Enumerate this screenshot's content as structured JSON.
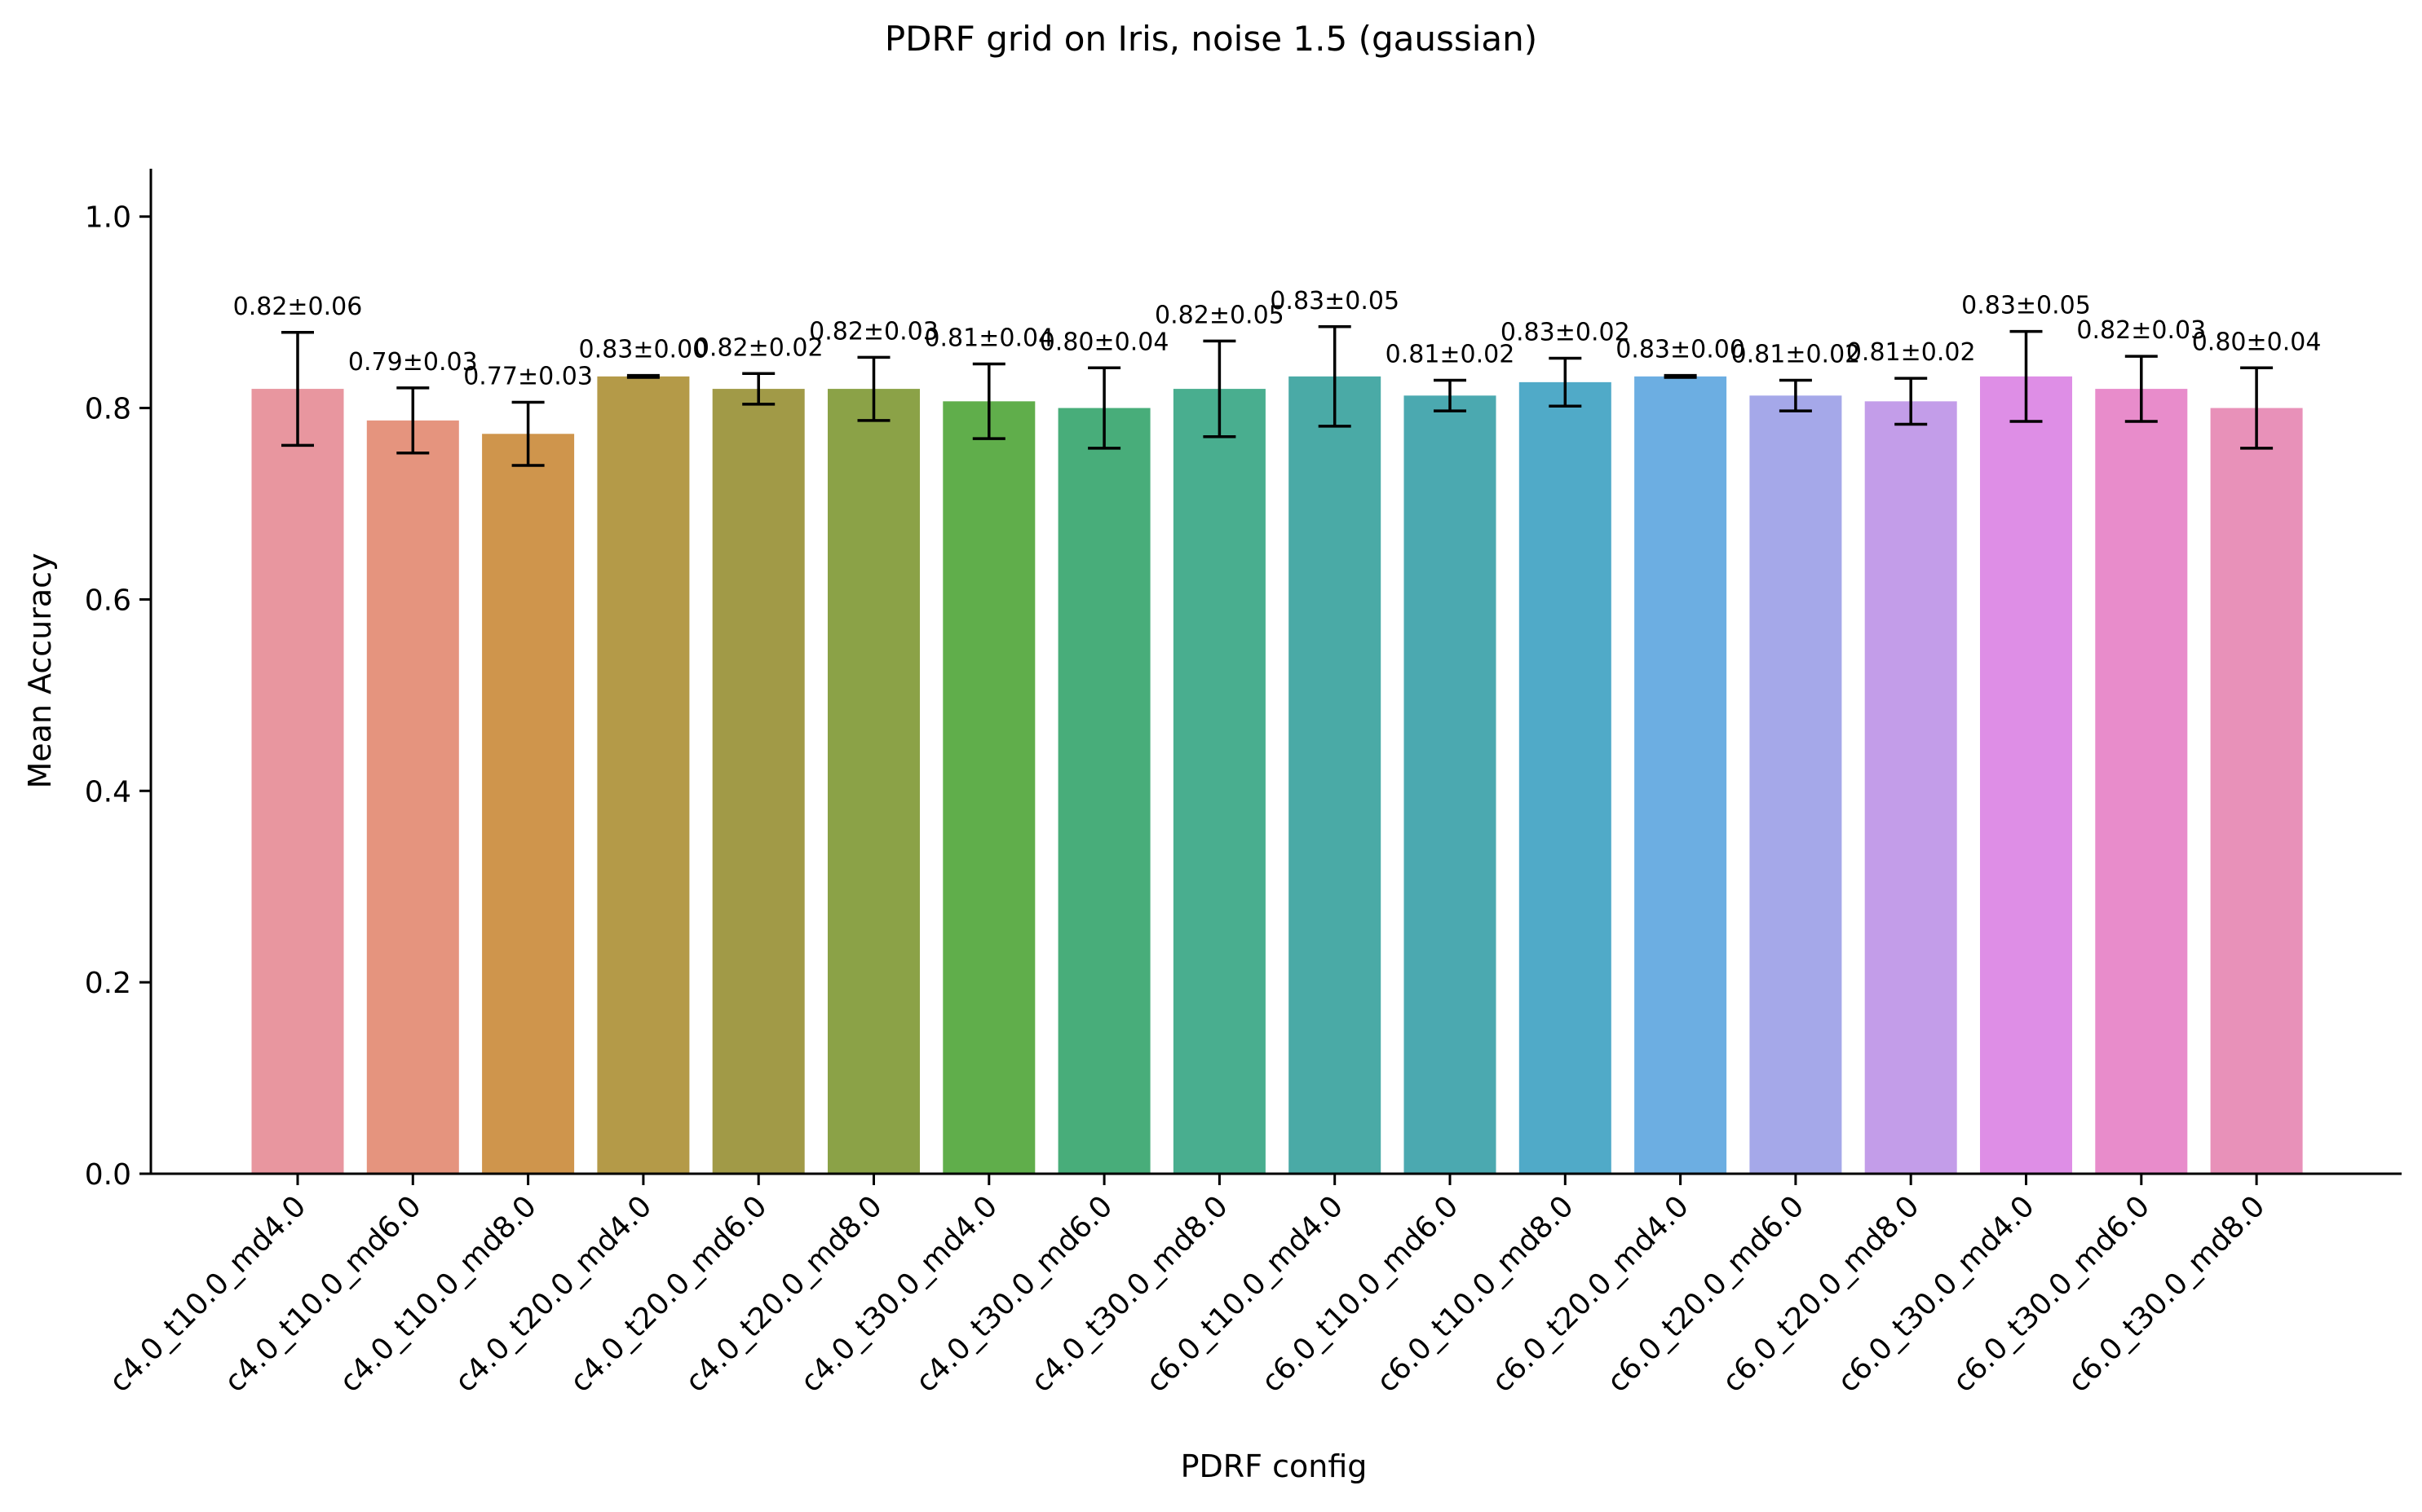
{
  "chart_data": {
    "type": "bar",
    "title": "PDRF grid on Iris, noise 1.5 (gaussian)",
    "xlabel": "PDRF config",
    "ylabel": "Mean Accuracy",
    "ylim": [
      0,
      1.05
    ],
    "yticks": [
      "0.0",
      "0.2",
      "0.4",
      "0.6",
      "0.8",
      "1.0"
    ],
    "grid": false,
    "categories": [
      "c4.0_t10.0_md4.0",
      "c4.0_t10.0_md6.0",
      "c4.0_t10.0_md8.0",
      "c4.0_t20.0_md4.0",
      "c4.0_t20.0_md6.0",
      "c4.0_t20.0_md8.0",
      "c4.0_t30.0_md4.0",
      "c4.0_t30.0_md6.0",
      "c4.0_t30.0_md8.0",
      "c6.0_t10.0_md4.0",
      "c6.0_t10.0_md6.0",
      "c6.0_t10.0_md8.0",
      "c6.0_t20.0_md4.0",
      "c6.0_t20.0_md6.0",
      "c6.0_t20.0_md8.0",
      "c6.0_t30.0_md4.0",
      "c6.0_t30.0_md6.0",
      "c6.0_t30.0_md8.0"
    ],
    "values": [
      0.82,
      0.787,
      0.773,
      0.833,
      0.82,
      0.82,
      0.807,
      0.8,
      0.82,
      0.833,
      0.813,
      0.827,
      0.833,
      0.813,
      0.807,
      0.833,
      0.82,
      0.8
    ],
    "errors": [
      0.059,
      0.034,
      0.033,
      0.001,
      0.016,
      0.033,
      0.039,
      0.042,
      0.05,
      0.052,
      0.016,
      0.025,
      0.001,
      0.016,
      0.024,
      0.047,
      0.034,
      0.042
    ],
    "data_labels": [
      "0.82±0.06",
      "0.79±0.03",
      "0.77±0.03",
      "0.83±0.00",
      "0.82±0.02",
      "0.82±0.03",
      "0.81±0.04",
      "0.80±0.04",
      "0.82±0.05",
      "0.83±0.05",
      "0.81±0.02",
      "0.83±0.02",
      "0.83±0.00",
      "0.81±0.02",
      "0.81±0.02",
      "0.83±0.05",
      "0.82±0.03",
      "0.80±0.04"
    ],
    "colors": [
      "#e8969f",
      "#e5947e",
      "#cf954c",
      "#b49a48",
      "#a19a47",
      "#8ba247",
      "#60ae4b",
      "#48ad7a",
      "#49ae8f",
      "#4aaaa6",
      "#4ba9b0",
      "#50aac8",
      "#6caee2",
      "#a5a8e9",
      "#c39de9",
      "#de8ee6",
      "#e88ccb",
      "#e891b9"
    ]
  }
}
